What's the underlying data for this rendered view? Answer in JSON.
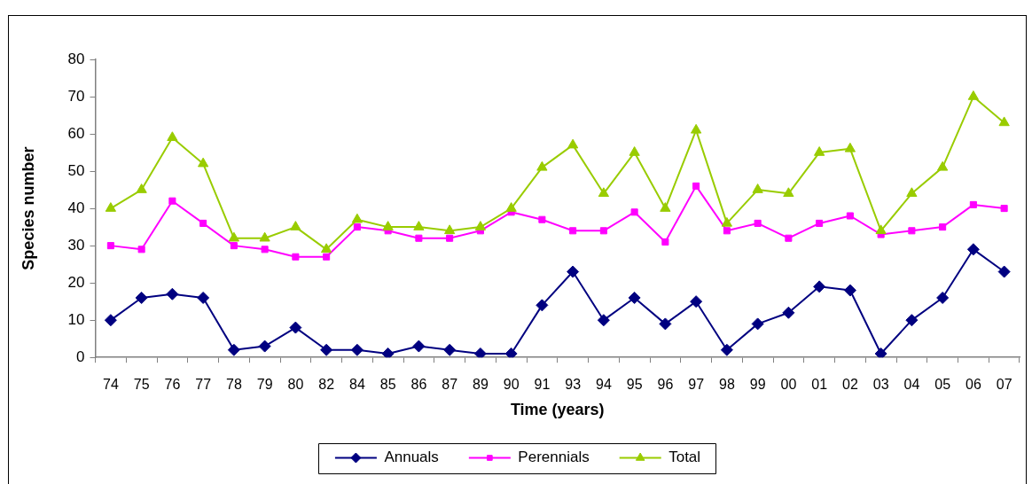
{
  "chart_data": {
    "type": "line",
    "xlabel": "Time (years)",
    "ylabel": "Species number",
    "categories": [
      "74",
      "75",
      "76",
      "77",
      "78",
      "79",
      "80",
      "82",
      "84",
      "85",
      "86",
      "87",
      "89",
      "90",
      "91",
      "93",
      "94",
      "95",
      "96",
      "97",
      "98",
      "99",
      "00",
      "01",
      "02",
      "03",
      "04",
      "05",
      "06",
      "07"
    ],
    "series": [
      {
        "name": "Annuals",
        "color": "#000080",
        "marker": "diamond",
        "values": [
          10,
          16,
          17,
          16,
          2,
          3,
          8,
          2,
          2,
          1,
          3,
          2,
          1,
          1,
          14,
          23,
          10,
          16,
          9,
          15,
          2,
          9,
          12,
          19,
          18,
          1,
          10,
          16,
          29,
          23
        ]
      },
      {
        "name": "Perennials",
        "color": "#ff00ff",
        "marker": "square",
        "values": [
          30,
          29,
          42,
          36,
          30,
          29,
          27,
          27,
          35,
          34,
          32,
          32,
          34,
          39,
          37,
          34,
          34,
          39,
          31,
          46,
          34,
          36,
          32,
          36,
          38,
          33,
          34,
          35,
          41,
          40
        ]
      },
      {
        "name": "Total",
        "color": "#99cc00",
        "marker": "triangle",
        "values": [
          40,
          45,
          59,
          52,
          32,
          32,
          35,
          29,
          37,
          35,
          35,
          34,
          35,
          40,
          51,
          57,
          44,
          55,
          40,
          61,
          36,
          45,
          44,
          55,
          56,
          34,
          44,
          51,
          70,
          63
        ]
      }
    ],
    "ylim": [
      0,
      80
    ],
    "yticks": [
      0,
      10,
      20,
      30,
      40,
      50,
      60,
      70,
      80
    ],
    "grid": false,
    "legend": "bottom",
    "line_style": "solid"
  }
}
